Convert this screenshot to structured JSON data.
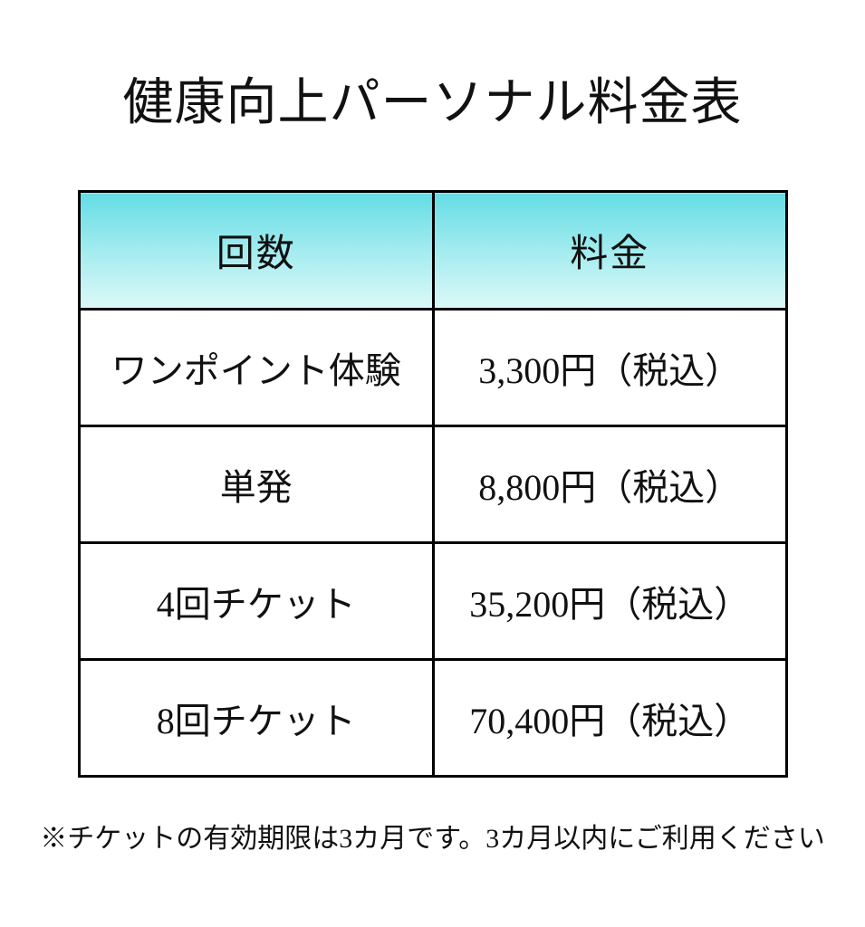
{
  "page": {
    "title": "健康向上パーソナル料金表",
    "background_color": "#ffffff",
    "text_color": "#111111"
  },
  "table": {
    "border_color": "#000000",
    "header_gradient_top": "#64dde4",
    "header_gradient_bottom": "#ddf8f8",
    "headers": [
      {
        "label": "回数"
      },
      {
        "label": "料金"
      }
    ],
    "rows": [
      {
        "label": "ワンポイント体験",
        "price": "3,300円（税込）"
      },
      {
        "label": "単発",
        "price": "8,800円（税込）"
      },
      {
        "label": "4回チケット",
        "price": "35,200円（税込）"
      },
      {
        "label": "8回チケット",
        "price": "70,400円（税込）"
      }
    ]
  },
  "footnote": {
    "text": "※チケットの有効期限は3カ月です。3カ月以内にご利用ください"
  }
}
